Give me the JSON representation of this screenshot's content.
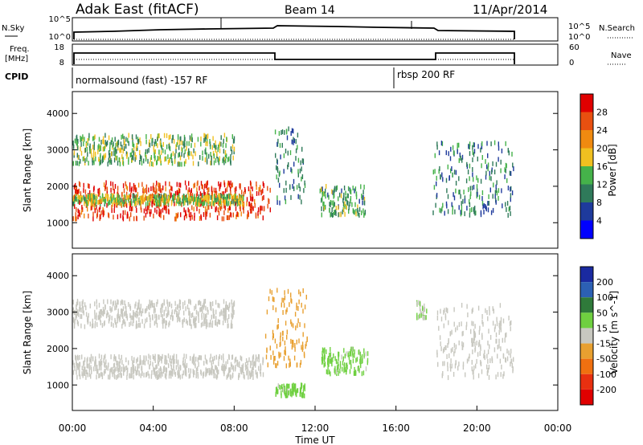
{
  "header": {
    "title": "Adak East (fitACF)",
    "beam": "Beam 14",
    "date": "11/Apr/2014"
  },
  "noise_panel": {
    "left_label": "N.Sky",
    "left_ticks": [
      "10^5",
      "10^0"
    ],
    "right_label": "N.Search",
    "right_ticks": [
      "10^5",
      "10^0"
    ]
  },
  "freq_panel": {
    "left_label_1": "Freq.",
    "left_label_2": "[MHz]",
    "left_ticks": [
      "18",
      "8"
    ],
    "right_label": "Nave",
    "right_ticks": [
      "60",
      "0"
    ]
  },
  "cpid": {
    "label": "CPID",
    "programs": [
      "normalsound (fast) -157 RF",
      "rbsp 200 RF"
    ]
  },
  "colors": {
    "power_scale": [
      "#0000ff",
      "#1e3a9c",
      "#2f7a5a",
      "#45b24a",
      "#f0c020",
      "#f08a10",
      "#e85010",
      "#e00000"
    ],
    "velocity_scale": [
      "#1a2aa0",
      "#2c60b4",
      "#2f7a3a",
      "#6fd040",
      "#c8c8c0",
      "#e8a030",
      "#f07010",
      "#e83010",
      "#e00000"
    ]
  },
  "chart_data": [
    {
      "type": "heatmap",
      "quantity": "Power",
      "ylabel": "Slant Range [km]",
      "yticks": [
        "1000",
        "2000",
        "3000",
        "4000"
      ],
      "ylim": [
        300,
        4600
      ],
      "xlim": [
        "00:00",
        "24:00"
      ],
      "colorbar_label": "Power [dB]",
      "colorbar_ticks": [
        "4",
        "8",
        "12",
        "16",
        "20",
        "24",
        "28"
      ],
      "clim": [
        0,
        32
      ],
      "features": [
        {
          "x": [
            0.0,
            9.8
          ],
          "range_km": [
            1100,
            2100
          ],
          "power_db": 28
        },
        {
          "x": [
            0.0,
            8.5
          ],
          "range_km": [
            1500,
            1750
          ],
          "power_db": 16
        },
        {
          "x": [
            0.0,
            8.0
          ],
          "range_km": [
            2600,
            3400
          ],
          "power_db": 14
        },
        {
          "x": [
            10.0,
            11.5
          ],
          "range_km": [
            1500,
            3600
          ],
          "power_db": 10
        },
        {
          "x": [
            12.2,
            14.5
          ],
          "range_km": [
            1200,
            2000
          ],
          "power_db": 12
        },
        {
          "x": [
            17.8,
            21.8
          ],
          "range_km": [
            1200,
            3200
          ],
          "power_db": 10
        }
      ]
    },
    {
      "type": "heatmap",
      "quantity": "Velocity",
      "ylabel": "Slant Range [km]",
      "yticks": [
        "1000",
        "2000",
        "3000",
        "4000"
      ],
      "ylim": [
        300,
        4600
      ],
      "xlim": [
        "00:00",
        "24:00"
      ],
      "xticks": [
        "00:00",
        "04:00",
        "08:00",
        "12:00",
        "16:00",
        "20:00",
        "00:00"
      ],
      "xlabel": "Time UT",
      "colorbar_label": "Velocity [m s^-1]",
      "colorbar_ticks": [
        "200",
        "100",
        "50",
        "15",
        "-15",
        "-50",
        "-100",
        "-200"
      ],
      "clim": [
        -250,
        250
      ],
      "features": [
        {
          "x": [
            0.0,
            9.5
          ],
          "range_km": [
            1200,
            1800
          ],
          "velocity_ms": 0
        },
        {
          "x": [
            0.0,
            8.0
          ],
          "range_km": [
            2600,
            3300
          ],
          "velocity_ms": 0
        },
        {
          "x": [
            9.5,
            11.6
          ],
          "range_km": [
            1500,
            3600
          ],
          "velocity_ms": -60
        },
        {
          "x": [
            12.3,
            14.6
          ],
          "range_km": [
            1300,
            2000
          ],
          "velocity_ms": 40
        },
        {
          "x": [
            10.0,
            11.5
          ],
          "range_km": [
            700,
            1000
          ],
          "velocity_ms": 40
        },
        {
          "x": [
            17.0,
            17.5
          ],
          "range_km": [
            2800,
            3300
          ],
          "velocity_ms": 30
        },
        {
          "x": [
            18.0,
            21.8
          ],
          "range_km": [
            1200,
            3200
          ],
          "velocity_ms": 0
        }
      ]
    }
  ]
}
